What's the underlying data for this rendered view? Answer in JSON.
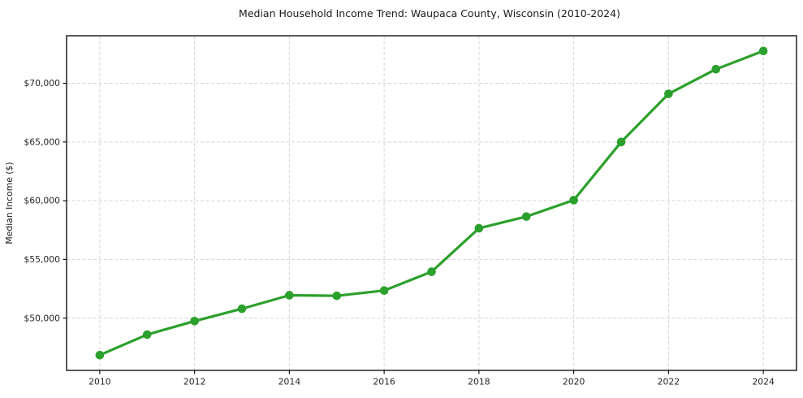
{
  "figure": {
    "background": "#ffffff",
    "spine_color": "#000000",
    "tick_color": "#262626",
    "text_color": "#1a1a1a"
  },
  "chart_data": {
    "type": "line",
    "title": "Median Household Income Trend: Waupaca County, Wisconsin (2010-2024)",
    "xlabel": "",
    "ylabel": "Median Income ($)",
    "x": [
      2010,
      2011,
      2012,
      2013,
      2014,
      2015,
      2016,
      2017,
      2018,
      2019,
      2020,
      2021,
      2022,
      2023,
      2024
    ],
    "series": [
      {
        "name": "Median Household Income",
        "color": "#2ca02c",
        "values": [
          46850,
          48600,
          49750,
          50800,
          51950,
          51900,
          52350,
          53950,
          57650,
          58650,
          60050,
          65000,
          69100,
          71200,
          72750
        ]
      }
    ],
    "xlim": [
      2009.3,
      2024.7
    ],
    "ylim": [
      45550,
      74050
    ],
    "xticks": [
      2010,
      2012,
      2014,
      2016,
      2018,
      2020,
      2022,
      2024
    ],
    "xtick_labels": [
      "2010",
      "2012",
      "2014",
      "2016",
      "2018",
      "2020",
      "2022",
      "2024"
    ],
    "yticks": [
      50000,
      55000,
      60000,
      65000,
      70000
    ],
    "ytick_labels": [
      "$50,000",
      "$55,000",
      "$60,000",
      "$65,000",
      "$70,000"
    ],
    "grid": true,
    "grid_style": "dashed",
    "grid_color": "#d4d4d4",
    "legend_position": "none",
    "marker": "circle",
    "marker_size": 5.3,
    "line_width": 3.2
  }
}
